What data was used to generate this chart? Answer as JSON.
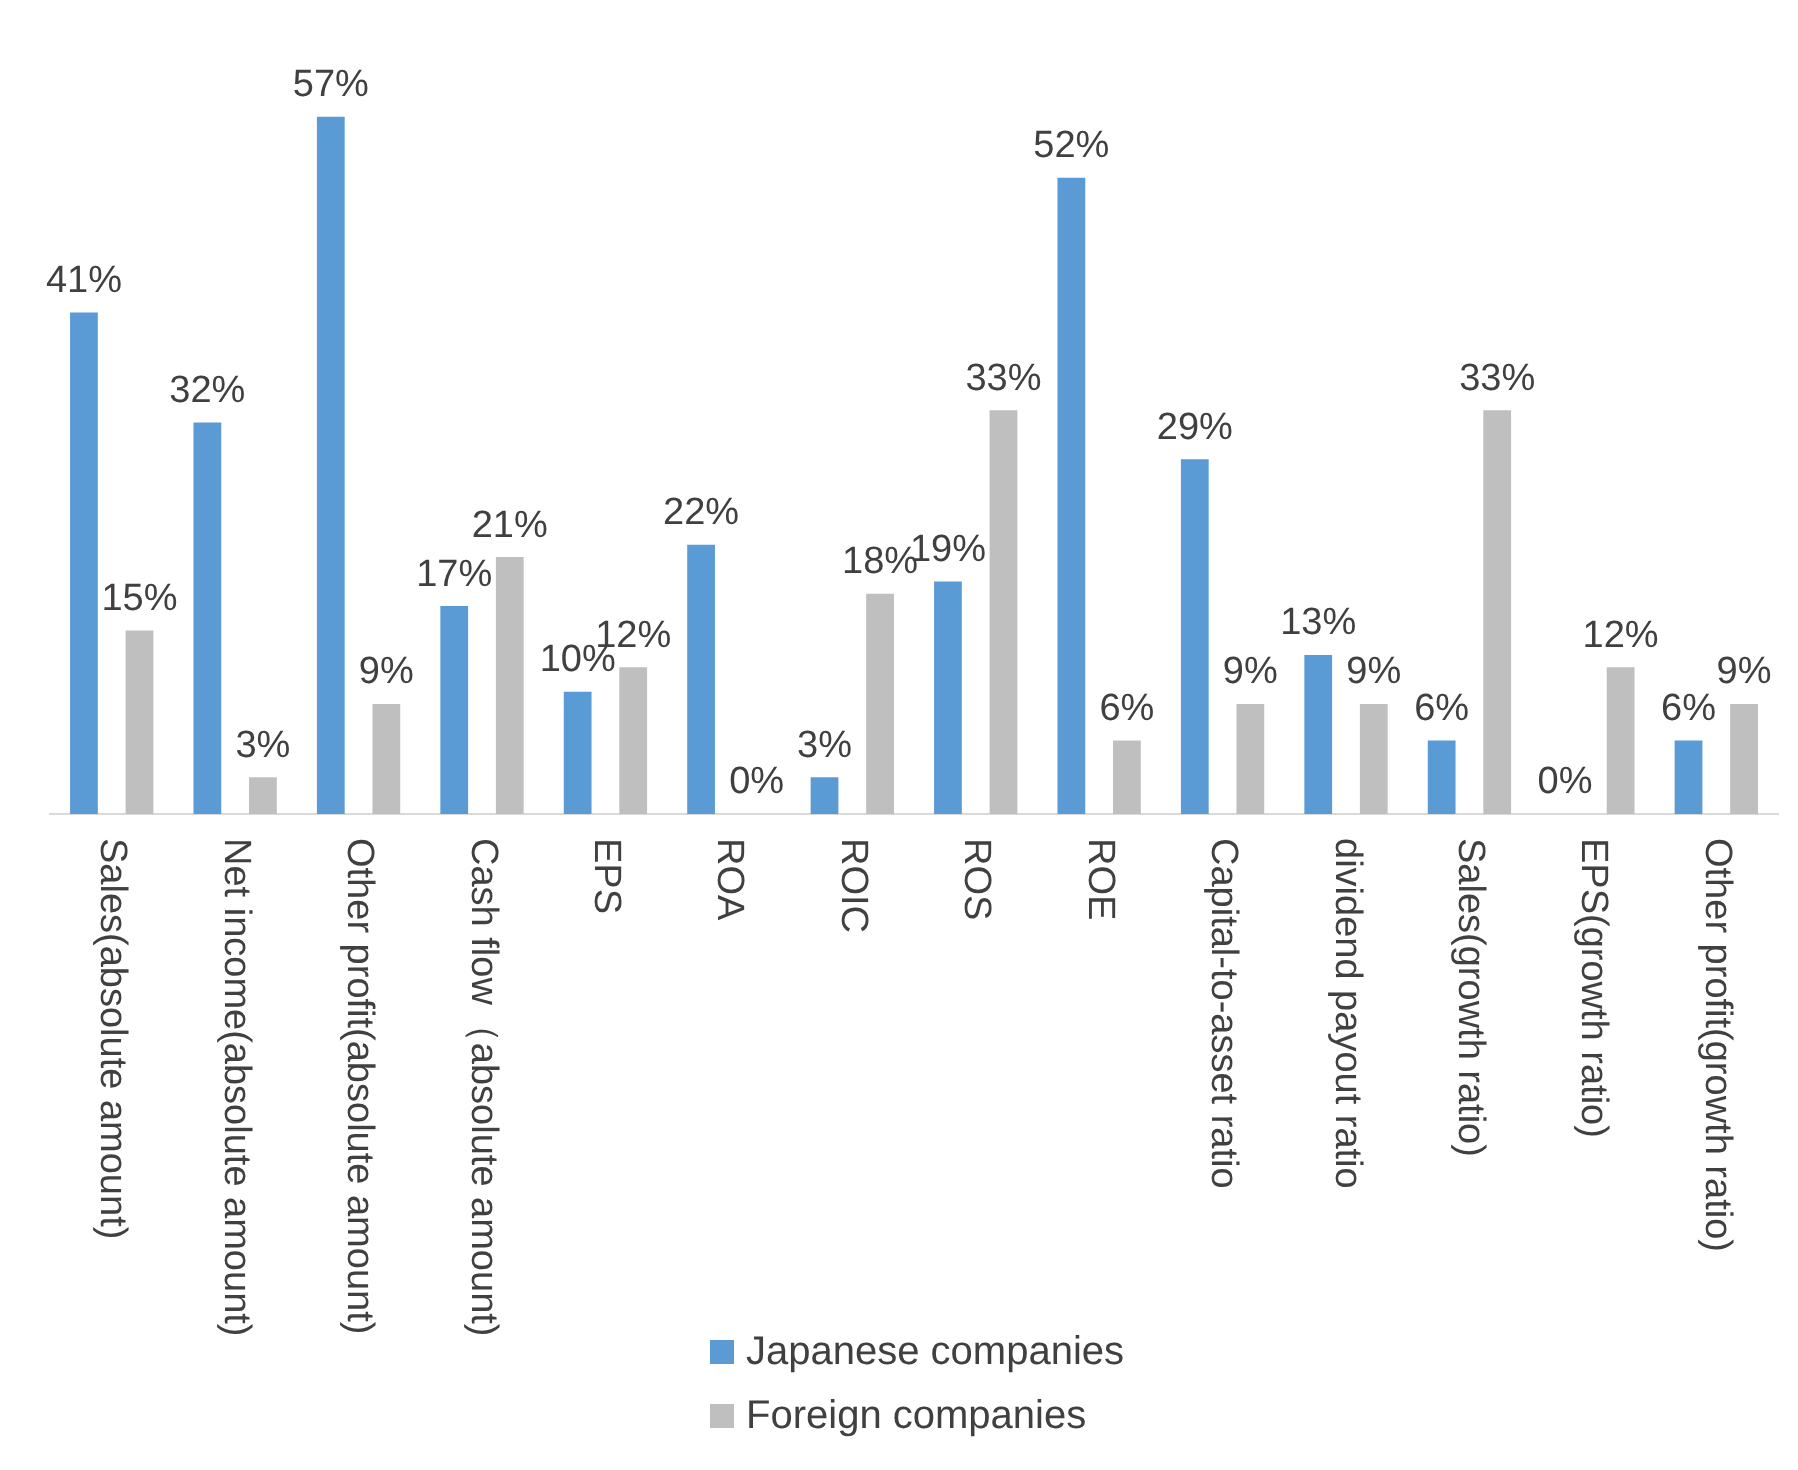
{
  "chart_data": {
    "type": "bar",
    "categories": [
      "Sales(absolute amount)",
      "Net income(absolute amount)",
      "Other profit(absolute amount)",
      "Cash flow（absolute amount)",
      "EPS",
      "ROA",
      "ROIC",
      "ROS",
      "ROE",
      "Capital-to-asset ratio",
      "dividend payout ratio",
      "Sales(growth ratio)",
      "EPS(growth ratio)",
      "Other profit(growth ratio)"
    ],
    "series": [
      {
        "name": "Japanese companies",
        "color": "#5b9bd5",
        "values": [
          41,
          32,
          57,
          17,
          10,
          22,
          3,
          19,
          52,
          29,
          13,
          6,
          0,
          6
        ],
        "value_labels": [
          "41%",
          "32%",
          "57%",
          "17%",
          "10%",
          "22%",
          "3%",
          "19%",
          "52%",
          "29%",
          "13%",
          "6%",
          "0%",
          "6%"
        ]
      },
      {
        "name": "Foreign companies",
        "color": "#bfbfbf",
        "values": [
          15,
          3,
          9,
          21,
          12,
          0,
          18,
          33,
          6,
          9,
          9,
          33,
          12,
          9
        ],
        "value_labels": [
          "15%",
          "3%",
          "9%",
          "21%",
          "12%",
          "0%",
          "18%",
          "33%",
          "6%",
          "9%",
          "9%",
          "33%",
          "12%",
          "9%"
        ]
      }
    ],
    "tick_labels": "x",
    "legend": "bottom"
  }
}
